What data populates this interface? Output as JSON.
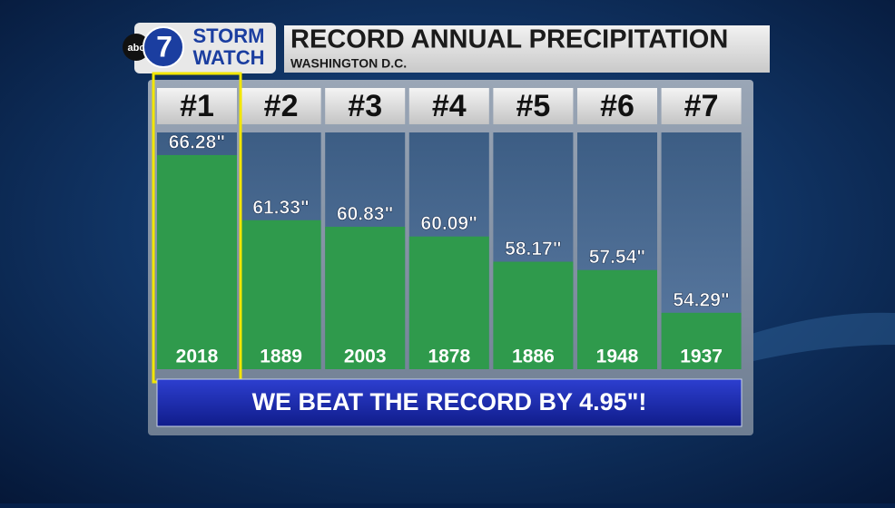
{
  "logo": {
    "network": "abc",
    "channel": "7",
    "line1": "STORM",
    "line2": "WATCH"
  },
  "chart_data": {
    "type": "bar",
    "title": "RECORD ANNUAL PRECIPITATION",
    "subtitle": "WASHINGTON D.C.",
    "ranks": [
      "#1",
      "#2",
      "#3",
      "#4",
      "#5",
      "#6",
      "#7"
    ],
    "categories": [
      "2018",
      "1889",
      "2003",
      "1878",
      "1886",
      "1948",
      "1937"
    ],
    "values": [
      66.28,
      61.33,
      60.83,
      60.09,
      58.17,
      57.54,
      54.29
    ],
    "value_labels": [
      "66.28\"",
      "61.33\"",
      "60.83\"",
      "60.09\"",
      "58.17\"",
      "57.54\"",
      "54.29\""
    ],
    "color": "#2f9a4c",
    "highlight": 0,
    "highlight_color": "#f2e600",
    "ylim": [
      50,
      68
    ],
    "annotation": "WE BEAT THE RECORD BY 4.95\"!"
  }
}
